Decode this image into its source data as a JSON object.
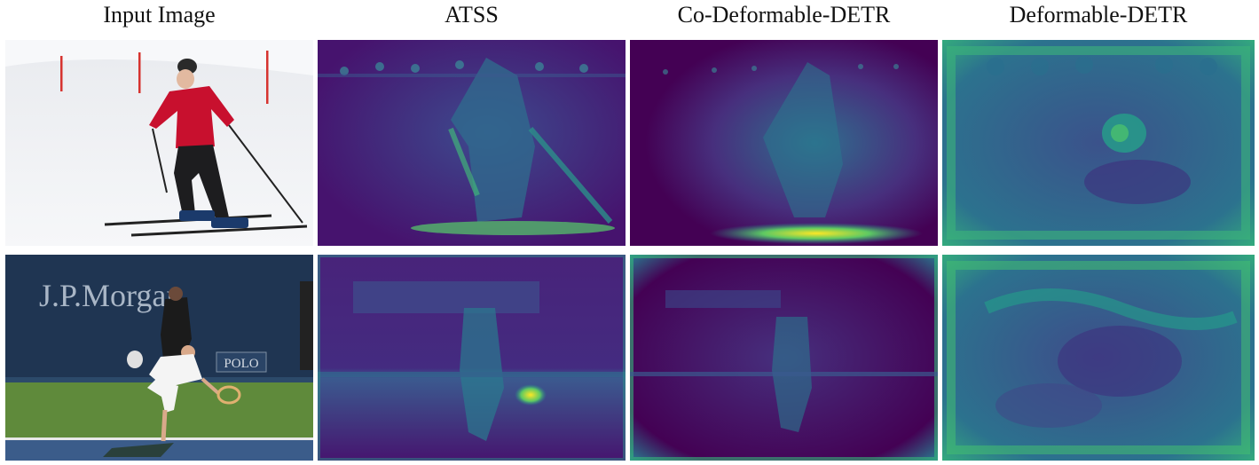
{
  "figure": {
    "columns": [
      {
        "title": "Input Image"
      },
      {
        "title": "ATSS"
      },
      {
        "title": "Co-Deformable-DETR"
      },
      {
        "title": "Deformable-DETR"
      }
    ],
    "rows": [
      {
        "scene": "skier-on-snow"
      },
      {
        "scene": "tennis-player-serving",
        "texts": {
          "sponsor": "J.P.Morgan",
          "sign": "POLO"
        }
      }
    ]
  },
  "colors": {
    "heatmap_low": "#440154",
    "heatmap_mid": "#3b5a8f",
    "heatmap_high": "#35b779",
    "heatmap_peak": "#fde725",
    "snow": "#f2f3f6",
    "jacket": "#c8102e",
    "court_wall": "#1f3552",
    "court_grass": "#5f8a3b"
  }
}
